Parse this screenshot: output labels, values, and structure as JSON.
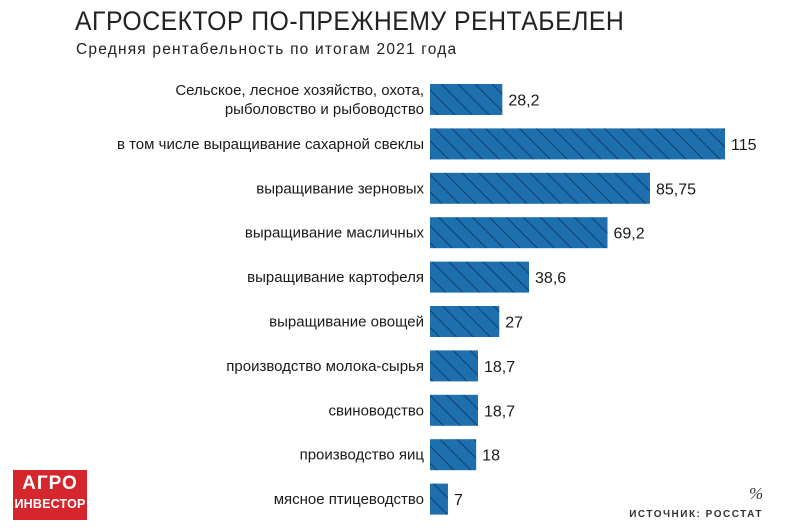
{
  "header": {
    "title": "АГРОСЕКТОР ПО-ПРЕЖНЕМУ РЕНТАБЕЛЕН",
    "subtitle": "Средняя рентабельность по итогам 2021 года"
  },
  "chart_data": {
    "type": "bar",
    "orientation": "horizontal",
    "title": "АГРОСЕКТОР ПО-ПРЕЖНЕМУ РЕНТАБЕЛЕН",
    "subtitle": "Средняя рентабельность по итогам 2021 года",
    "unit": "%",
    "categories": [
      [
        "Сельское, лесное хозяйство, охота,",
        "рыболовство и рыбоводство"
      ],
      [
        "в том числе выращивание сахарной свеклы"
      ],
      [
        "выращивание зерновых"
      ],
      [
        "выращивание масличных"
      ],
      [
        "выращивание картофеля"
      ],
      [
        "выращивание овощей"
      ],
      [
        "производство молока-сырья"
      ],
      [
        "свиноводство"
      ],
      [
        "производство яиц"
      ],
      [
        "мясное птицеводство"
      ]
    ],
    "values": [
      28.2,
      115,
      85.75,
      69.2,
      38.6,
      27,
      18.7,
      18.7,
      18,
      7
    ],
    "value_labels": [
      "28,2",
      "115",
      "85,75",
      "69,2",
      "38,6",
      "27",
      "18,7",
      "18,7",
      "18",
      "7"
    ],
    "bar_color": "#1e6fae",
    "hatch_color": "#0d3f6e",
    "xlim": [
      0,
      115
    ]
  },
  "footer": {
    "unit_symbol": "%",
    "source": "ИСТОЧНИК: РОССТАТ",
    "logo_line1": "АГРО",
    "logo_line2": "ИНВЕСТОР"
  }
}
